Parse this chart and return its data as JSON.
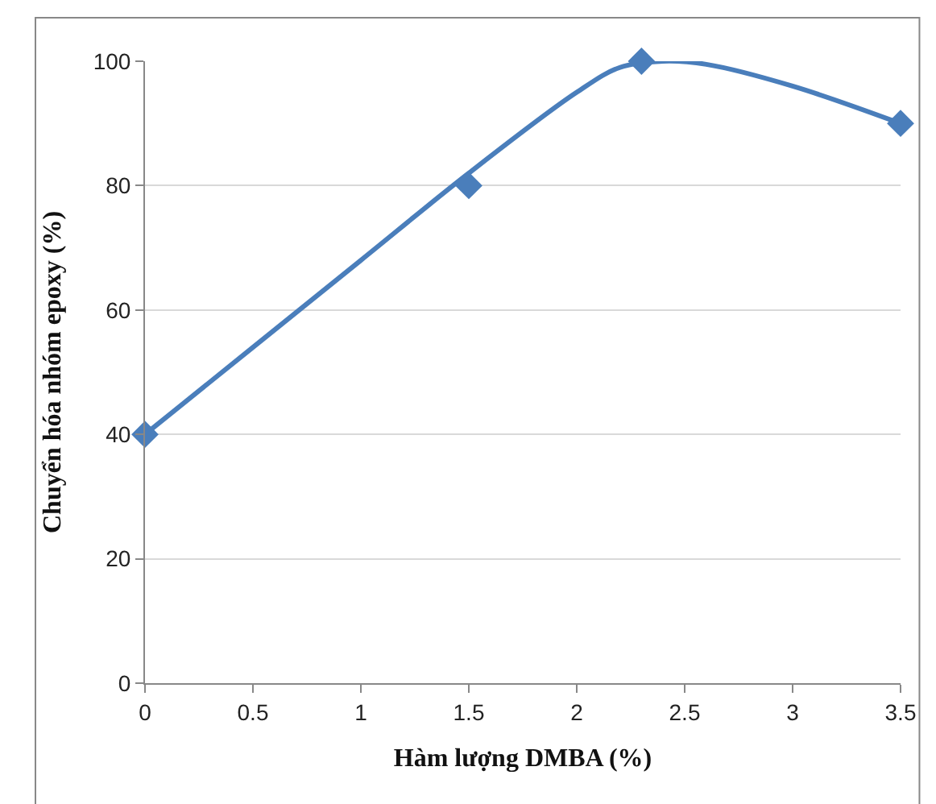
{
  "chart_data": {
    "type": "scatter",
    "xlabel": "Hàm lượng DMBA (%)",
    "ylabel": "Chuyển hóa nhóm epoxy (%)",
    "xlim": [
      0,
      3.5
    ],
    "xticks": [
      0,
      0.5,
      1,
      1.5,
      2,
      2.5,
      3,
      3.5
    ],
    "ylim": [
      0,
      100
    ],
    "yticks": [
      0,
      20,
      40,
      60,
      80,
      100
    ],
    "grid": "y",
    "series": [
      {
        "type": "line",
        "color": "#4a7ebb",
        "marker": "none",
        "x": [
          0,
          0.5,
          1,
          1.5,
          2,
          2.2,
          2.4,
          2.6,
          3,
          3.5
        ],
        "values": [
          40,
          54,
          68,
          82,
          95,
          99,
          100,
          99.5,
          96,
          90
        ]
      },
      {
        "color": "#4a7ebb",
        "marker": "diamond",
        "x": [
          0,
          1.5,
          2.3,
          3.5
        ],
        "values": [
          40,
          80,
          100,
          90
        ]
      }
    ]
  }
}
